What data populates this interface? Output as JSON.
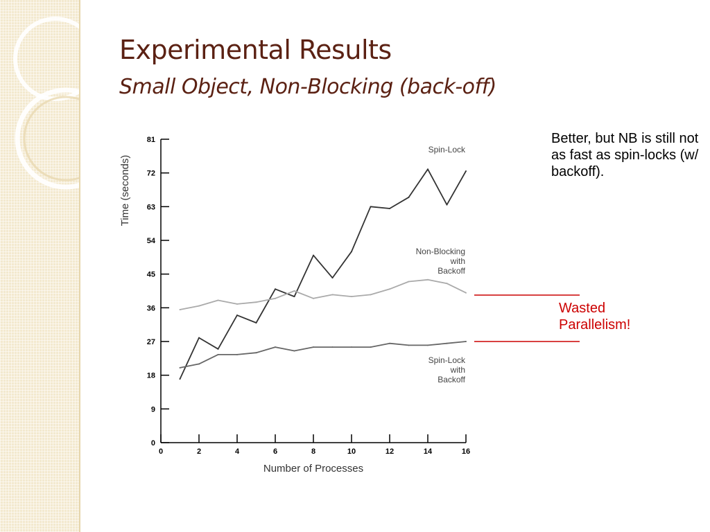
{
  "slide": {
    "title": "Experimental Results",
    "subtitle": "Small Object, Non-Blocking (back-off)",
    "note": "Better, but NB is still not as fast as spin-locks (w/ backoff).",
    "annotation": {
      "line1": "Wasted",
      "line2": "Parallelism!",
      "color": "#cc0000"
    },
    "theme": {
      "title_color": "#5b2113",
      "sidebar_color": "#f3e9cf"
    }
  },
  "chart_data": {
    "type": "line",
    "title": "",
    "xlabel": "Number of Processes",
    "ylabel": "Time (seconds)",
    "xlim": [
      0,
      16
    ],
    "ylim": [
      0,
      81
    ],
    "xticks": [
      0,
      2,
      4,
      6,
      8,
      10,
      12,
      14,
      16
    ],
    "yticks": [
      0,
      9,
      18,
      27,
      36,
      45,
      54,
      63,
      72,
      81
    ],
    "grid": false,
    "legend": "inline labels",
    "series": [
      {
        "name": "Spin-Lock",
        "color": "#333333",
        "x": [
          1,
          2,
          3,
          4,
          5,
          6,
          7,
          8,
          9,
          10,
          11,
          12,
          13,
          14,
          15,
          16
        ],
        "values": [
          17,
          28,
          25,
          34,
          32,
          41,
          39,
          50,
          44,
          51,
          63,
          62.5,
          65.5,
          73,
          63.5,
          72.5
        ]
      },
      {
        "name": "Non-Blocking with Backoff",
        "label_lines": [
          "Non-Blocking",
          "with",
          "Backoff"
        ],
        "color": "#aaaaaa",
        "x": [
          1,
          2,
          3,
          4,
          5,
          6,
          7,
          8,
          9,
          10,
          11,
          12,
          13,
          14,
          15,
          16
        ],
        "values": [
          35.5,
          36.5,
          38,
          37,
          37.5,
          38.5,
          40.5,
          38.5,
          39.5,
          39,
          39.5,
          41,
          43,
          43.5,
          42.5,
          40
        ]
      },
      {
        "name": "Spin-Lock with Backoff",
        "label_lines": [
          "Spin-Lock",
          "with",
          "Backoff"
        ],
        "color": "#666666",
        "x": [
          1,
          2,
          3,
          4,
          5,
          6,
          7,
          8,
          9,
          10,
          11,
          12,
          13,
          14,
          15,
          16
        ],
        "values": [
          20,
          21,
          23.5,
          23.5,
          24,
          25.5,
          24.5,
          25.5,
          25.5,
          25.5,
          25.5,
          26.5,
          26,
          26,
          26.5,
          27
        ]
      }
    ]
  }
}
